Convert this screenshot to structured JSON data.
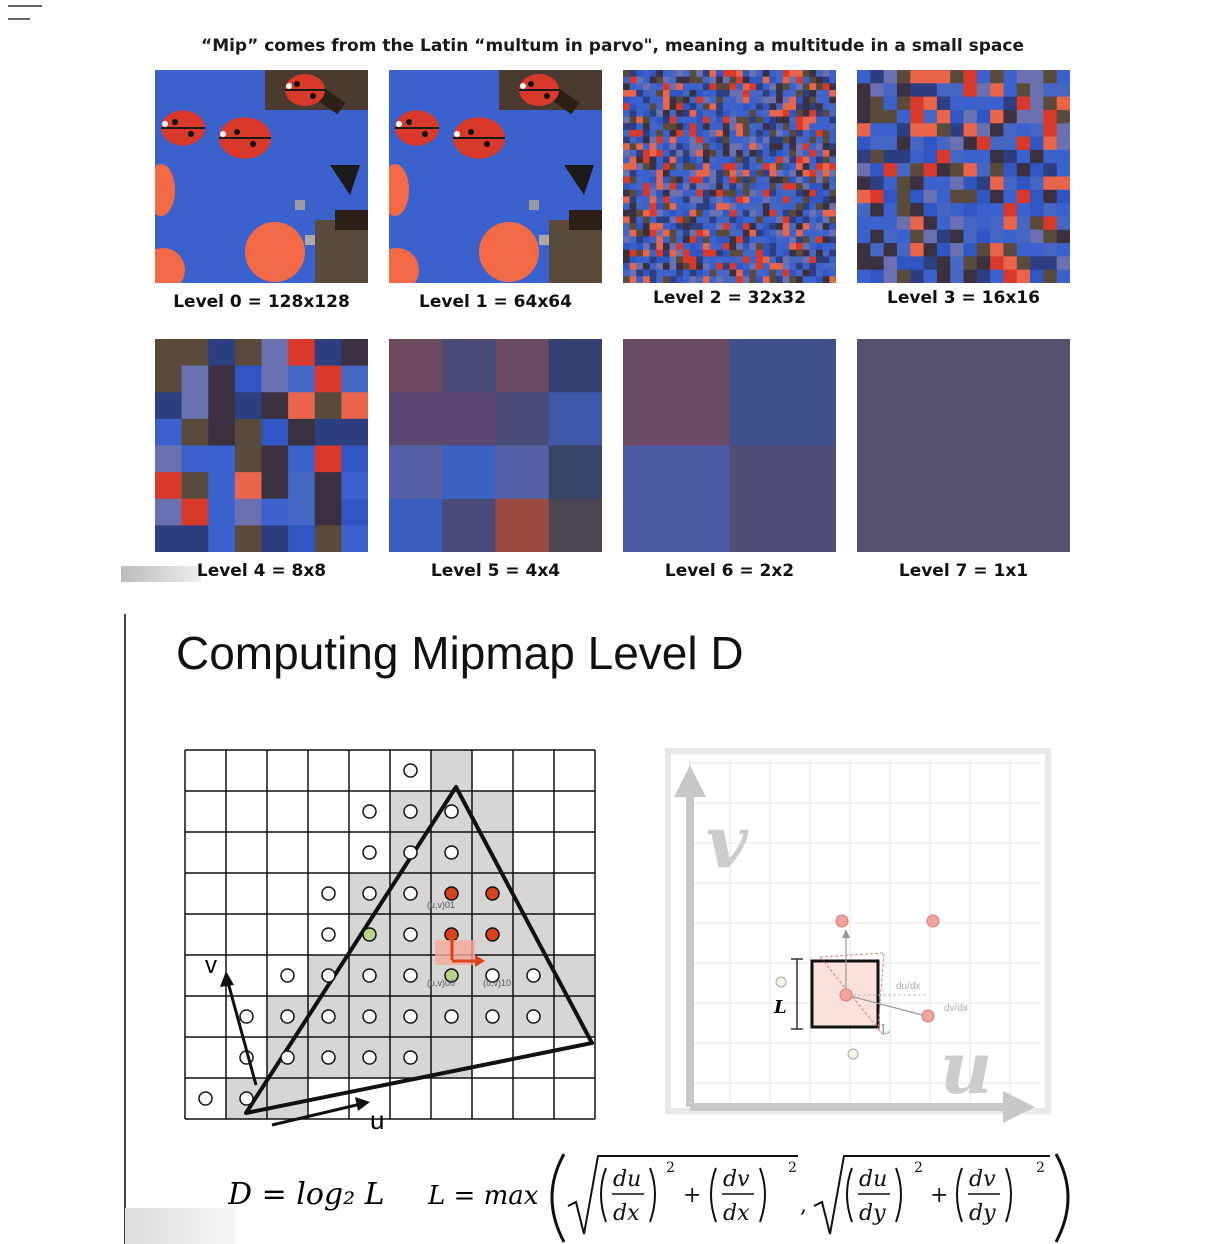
{
  "top": {
    "title": "“Mip” comes from the Latin “multum in parvo\", meaning a multitude in a small space",
    "levels": [
      {
        "label": "Level 0 = 128x128",
        "grid": 0
      },
      {
        "label": "Level 1 = 64x64",
        "grid": 0
      },
      {
        "label": "Level 2 = 32x32",
        "grid": 32
      },
      {
        "label": "Level 3 = 16x16",
        "grid": 16
      },
      {
        "label": "Level 4 = 8x8",
        "grid": 8
      },
      {
        "label": "Level 5 = 4x4",
        "grid": 4
      },
      {
        "label": "Level 6 = 2x2",
        "grid": 2
      },
      {
        "label": "Level 7 = 1x1",
        "grid": 1
      }
    ],
    "colors": {
      "blue": "#3a5fc8",
      "red": "#e04a2e",
      "dark": "#3a2a20",
      "avg": "#555270"
    }
  },
  "slide": {
    "title": "Computing Mipmap Level D",
    "left_diagram": {
      "axis_v": "v",
      "axis_u": "u",
      "label_01": "(u,v)01",
      "label_00": "(u,v)00",
      "label_10": "(u,v)10"
    },
    "right_diagram": {
      "axis_v": "v",
      "axis_u": "u",
      "label_L_side": "L",
      "label_L_diag": "L",
      "label_dudx": "du/dx",
      "label_dvdx": "dv/dx"
    },
    "formula": {
      "part1": "D = log₂ L",
      "part2": "L = max"
    }
  }
}
